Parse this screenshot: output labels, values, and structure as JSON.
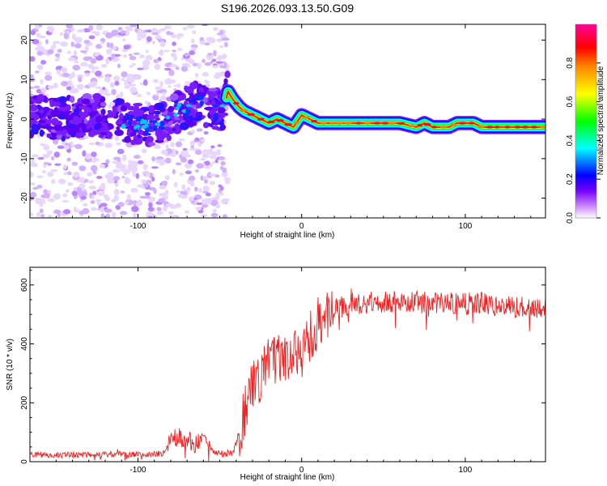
{
  "chart_data": [
    {
      "type": "heatmap",
      "title": "S196.2026.093.13.50.G09",
      "xlabel": "Height of straight line (km)",
      "ylabel": "Frequency (Hz)",
      "xlim": [
        -166,
        149
      ],
      "ylim": [
        -25,
        24
      ],
      "xticks": [
        -100,
        0,
        100
      ],
      "yticks": [
        -20,
        -10,
        0,
        10,
        20
      ],
      "colorbar": {
        "label": "Normalized spectral amplitude",
        "range": [
          0,
          1
        ],
        "ticks": [
          "0.0",
          "0.2",
          "0.4",
          "0.6",
          "0.8"
        ],
        "colormap": [
          "#ffffff",
          "#9933ff",
          "#0000ff",
          "#00ffff",
          "#00ff00",
          "#ffff00",
          "#ff8800",
          "#ff0000",
          "#ff00aa"
        ]
      },
      "ridge": {
        "note": "dominant frequency track (x in km, y in Hz)",
        "x": [
          -166,
          -150,
          -130,
          -110,
          -95,
          -85,
          -75,
          -65,
          -55,
          -48,
          -45,
          -42,
          -38,
          -35,
          -30,
          -25,
          -20,
          -15,
          -10,
          -5,
          0,
          5,
          10,
          20,
          30,
          40,
          50,
          60,
          70,
          75,
          80,
          85,
          90,
          95,
          100,
          105,
          110,
          120,
          130,
          149
        ],
        "y": [
          1,
          0,
          1,
          0,
          -2,
          -1,
          2,
          4,
          3,
          2,
          7,
          5,
          3,
          2,
          1,
          0,
          -1,
          0,
          -1,
          -2,
          1,
          0,
          -1,
          -1,
          -1,
          -1,
          -1,
          -1,
          -2,
          -1,
          -2,
          -2,
          -2,
          -1,
          -1,
          -1,
          -2,
          -2,
          -2,
          -2
        ]
      },
      "noise_region_x": [
        -166,
        -45
      ]
    },
    {
      "type": "line",
      "xlabel": "Height of straight line (km)",
      "ylabel": "SNR (10 * v/v)",
      "xlim": [
        -166,
        149
      ],
      "ylim": [
        0,
        660
      ],
      "xticks": [
        -100,
        0,
        100
      ],
      "yticks": [
        0,
        200,
        400,
        600
      ],
      "series": [
        {
          "name": "SNR",
          "color": "#ee2222",
          "anchors_x": [
            -166,
            -150,
            -120,
            -100,
            -85,
            -80,
            -75,
            -70,
            -65,
            -60,
            -55,
            -50,
            -42,
            -35,
            -30,
            -20,
            -10,
            0,
            5,
            10,
            20,
            30,
            40,
            60,
            80,
            100,
            110,
            120,
            149
          ],
          "anchors_y": [
            25,
            22,
            25,
            25,
            28,
            75,
            85,
            70,
            60,
            80,
            35,
            30,
            30,
            160,
            250,
            330,
            360,
            370,
            420,
            470,
            515,
            535,
            540,
            545,
            540,
            535,
            540,
            525,
            525
          ]
        }
      ]
    }
  ]
}
